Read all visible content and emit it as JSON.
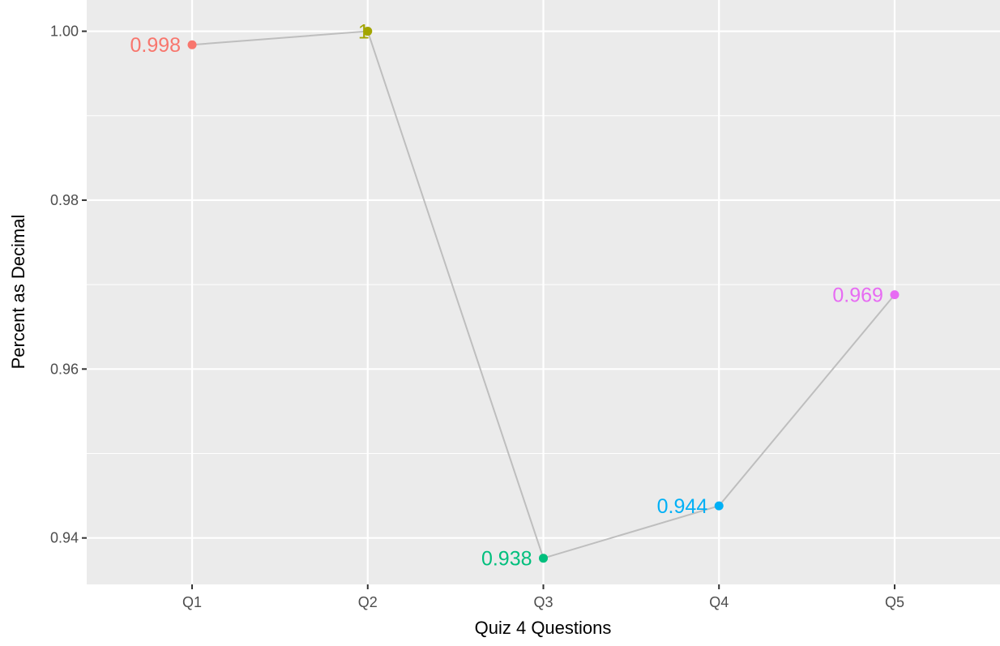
{
  "chart_data": {
    "type": "line",
    "title": "",
    "xlabel": "Quiz 4 Questions",
    "ylabel": "Percent as Decimal",
    "categories": [
      "Q1",
      "Q2",
      "Q3",
      "Q4",
      "Q5"
    ],
    "values": [
      0.9984,
      1.0,
      0.9376,
      0.9438,
      0.9688
    ],
    "point_labels": [
      "0.998",
      "1",
      "0.938",
      "0.944",
      "0.969"
    ],
    "point_colors": [
      "#F8766D",
      "#A3A500",
      "#00BF7D",
      "#00B0F6",
      "#E76BF3"
    ],
    "line_color": "#BEBEBE",
    "ylim": [
      0.9345,
      1.0037
    ],
    "y_ticks": [
      0.94,
      0.96,
      0.98,
      1.0
    ],
    "y_tick_labels": [
      "0.94",
      "0.96",
      "0.98",
      "1.00"
    ],
    "grid": true,
    "legend": "none"
  },
  "colors": {
    "panel_background": "#EBEBEB",
    "grid_line": "#FFFFFF"
  }
}
